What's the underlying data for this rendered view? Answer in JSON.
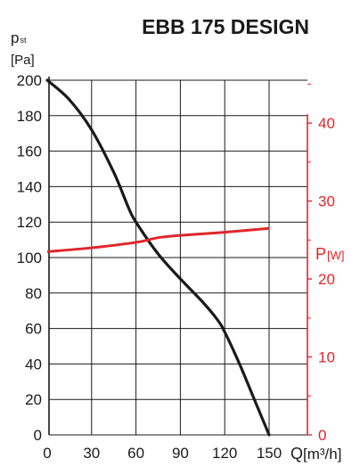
{
  "chart_data": {
    "type": "line",
    "title": "EBB 175 DESIGN",
    "xlabel": "Q",
    "xlabel_unit": "[m³/h]",
    "ylabel_left": "p",
    "ylabel_left_sub": "st",
    "ylabel_left_unit": "[Pa]",
    "ylabel_right": "P",
    "ylabel_right_unit": "[W]",
    "xlim": [
      0,
      180
    ],
    "ylim_left": [
      0,
      200
    ],
    "ylim_right": [
      0,
      45.5
    ],
    "x_ticks": [
      0,
      30,
      60,
      90,
      120,
      150
    ],
    "y_ticks_left": [
      0,
      20,
      40,
      60,
      80,
      100,
      120,
      140,
      160,
      180,
      200
    ],
    "y_ticks_right": [
      0,
      10,
      20,
      30,
      40
    ],
    "grid": true,
    "colors": {
      "pressure": "#1a1a1a",
      "power": "#e0262b",
      "grid": "#1a1a1a",
      "right_axis": "#e0262b"
    },
    "series": [
      {
        "axis": "left",
        "x": [
          0,
          15,
          30,
          45,
          55,
          60,
          75,
          90,
          105,
          115,
          120,
          130,
          140,
          150
        ],
        "y": [
          200,
          189,
          172,
          148,
          128,
          120,
          102,
          88,
          75,
          65,
          58,
          40,
          20,
          0
        ]
      },
      {
        "axis": "right",
        "x": [
          0,
          30,
          60,
          75,
          90,
          120,
          150
        ],
        "y": [
          23.5,
          24.0,
          24.7,
          25.3,
          25.6,
          26.0,
          26.5
        ]
      }
    ]
  }
}
